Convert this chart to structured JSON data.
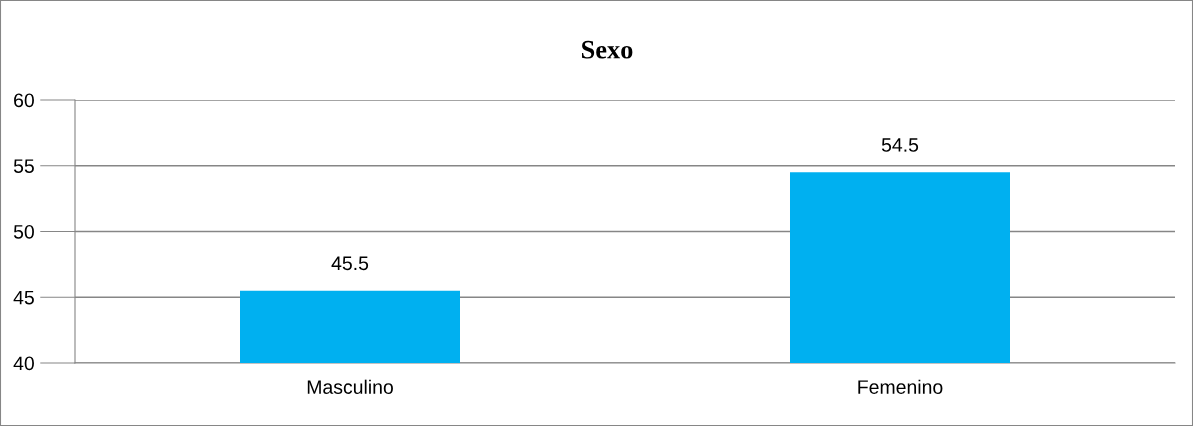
{
  "chart_data": {
    "type": "bar",
    "title": "Sexo",
    "categories": [
      "Masculino",
      "Femenino"
    ],
    "values": [
      45.5,
      54.5
    ],
    "color": "#00b0f0",
    "ylim": [
      40,
      60
    ],
    "yticks": [
      40,
      45,
      50,
      55,
      60
    ],
    "grid": "y",
    "data_labels": true
  }
}
